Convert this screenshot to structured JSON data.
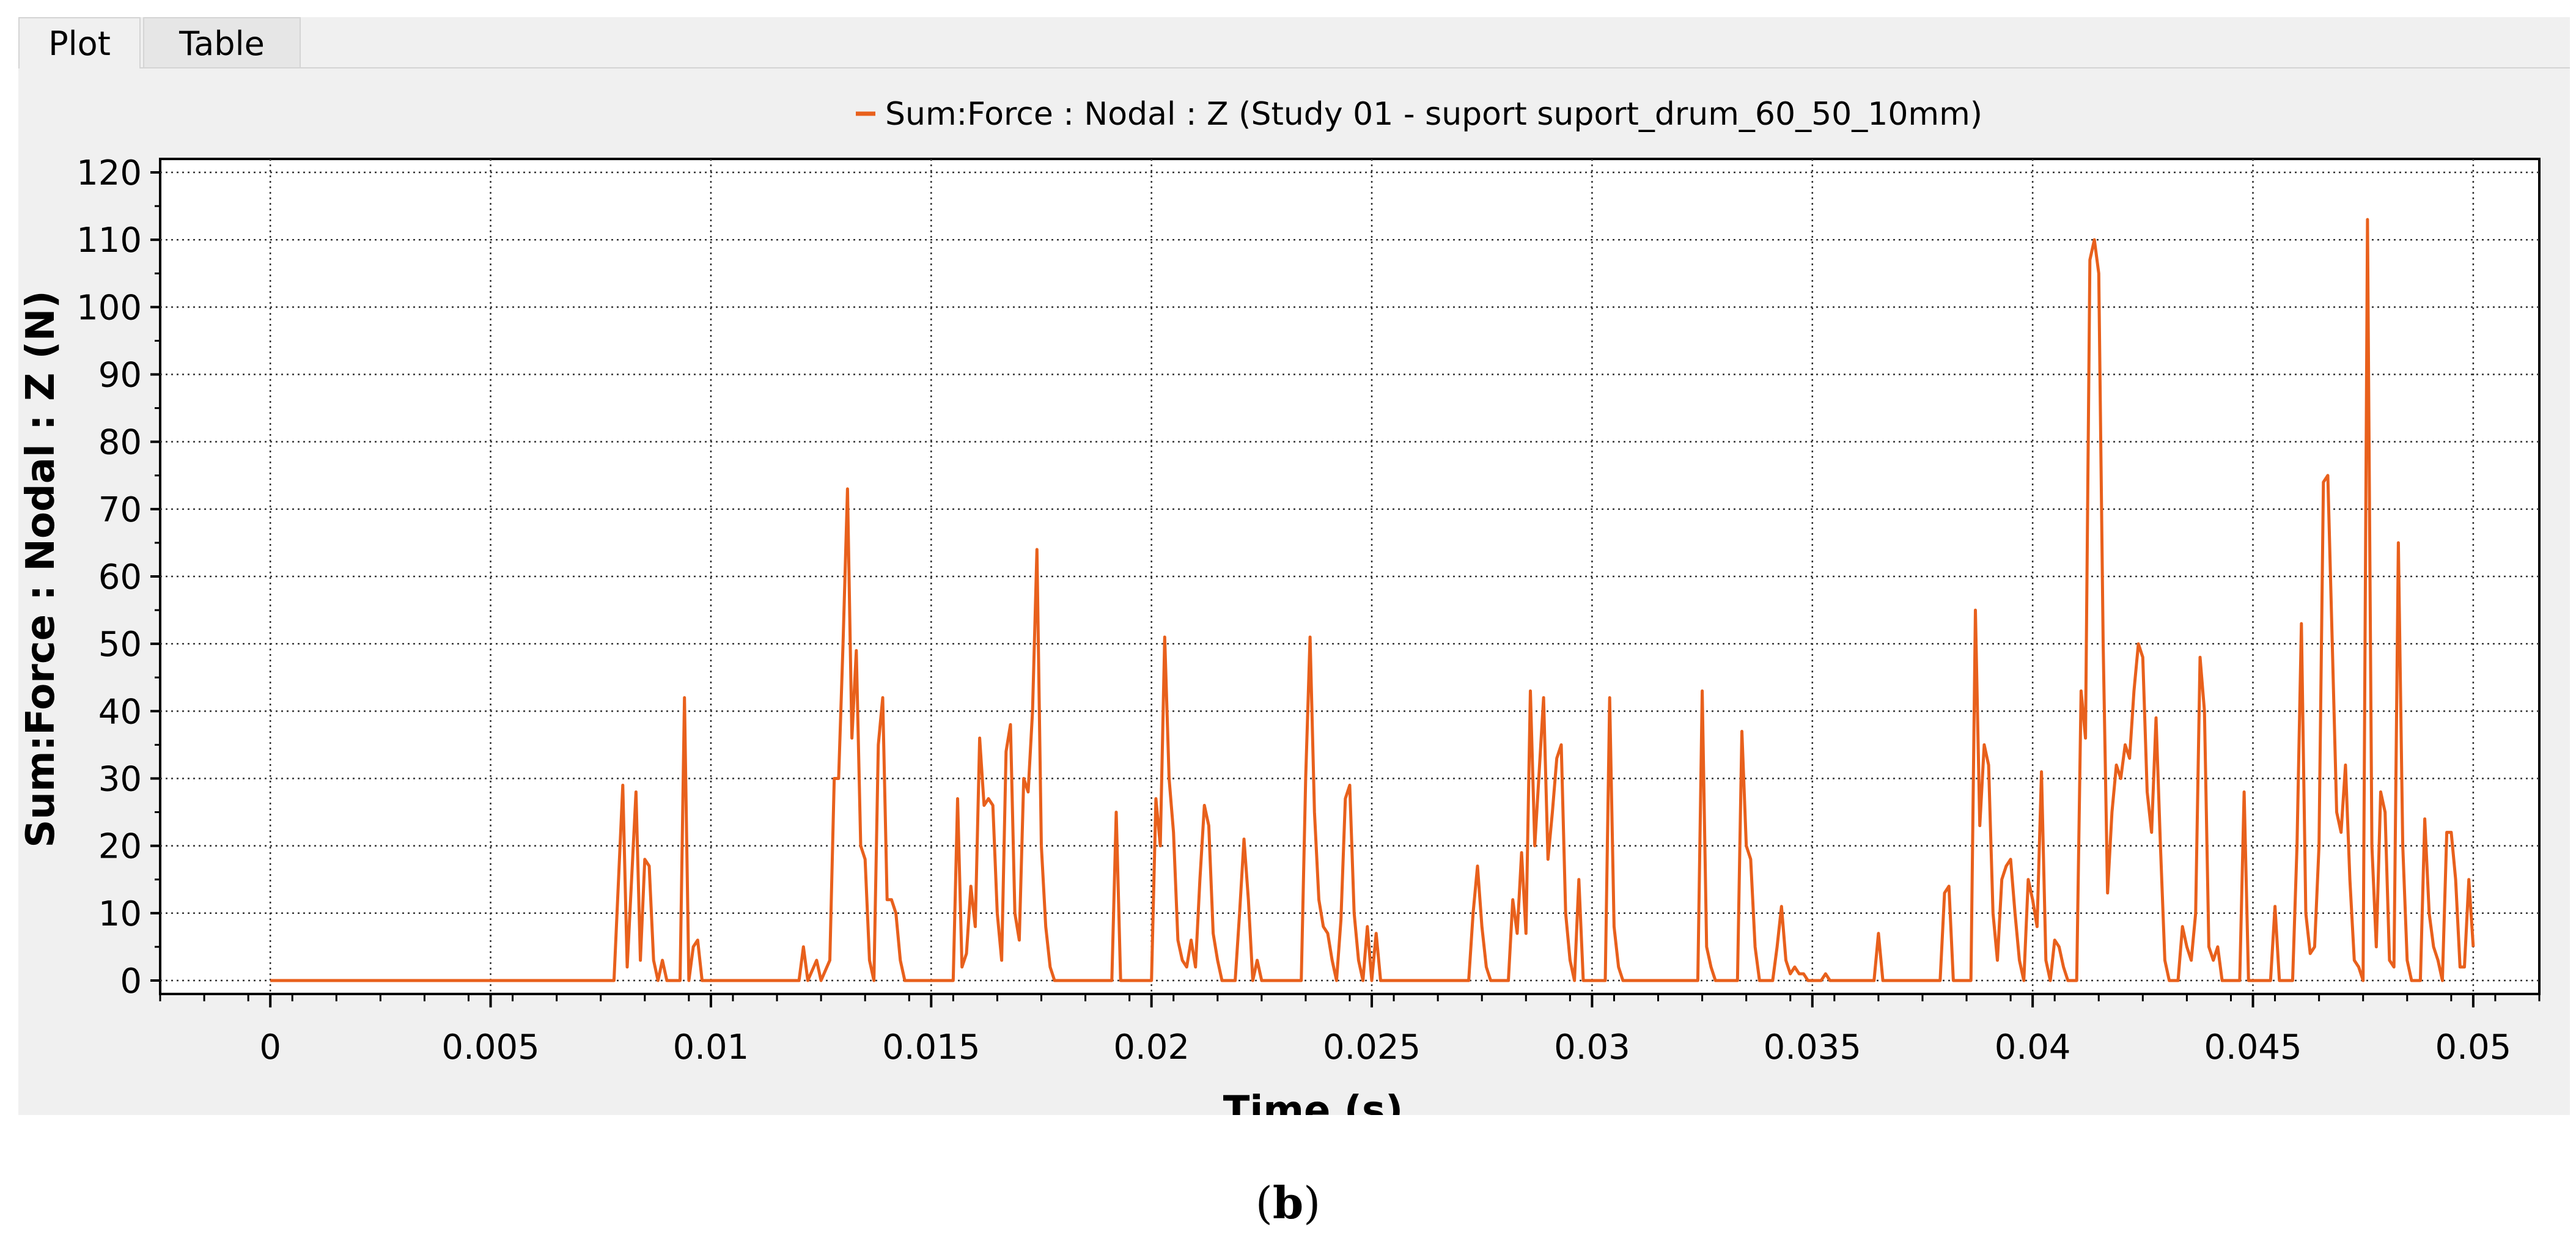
{
  "tabs": [
    {
      "label": "Plot",
      "active": true
    },
    {
      "label": "Table",
      "active": false
    }
  ],
  "caption": {
    "open": "(",
    "letter": "b",
    "close": ")"
  },
  "colors": {
    "series": "#e8601c",
    "grid": "#333333",
    "panel_bg": "#f0f0f0",
    "plot_bg": "#ffffff"
  },
  "chart_data": {
    "type": "line",
    "title": "",
    "xlabel": "Time (s)",
    "ylabel": "Sum:Force : Nodal : Z (N)",
    "xlim": [
      -0.0025,
      0.0515
    ],
    "ylim": [
      -2,
      122
    ],
    "xticks": [
      0,
      0.005,
      0.01,
      0.015,
      0.02,
      0.025,
      0.03,
      0.035,
      0.04,
      0.045,
      0.05
    ],
    "xtick_labels": [
      "0",
      "0.005",
      "0.01",
      "0.015",
      "0.02",
      "0.025",
      "0.03",
      "0.035",
      "0.04",
      "0.045",
      "0.05"
    ],
    "yticks": [
      0,
      10,
      20,
      30,
      40,
      50,
      60,
      70,
      80,
      90,
      100,
      110,
      120
    ],
    "ytick_labels": [
      "0",
      "10",
      "20",
      "30",
      "40",
      "50",
      "60",
      "70",
      "80",
      "90",
      "100",
      "110",
      "120"
    ],
    "grid": true,
    "grid_style": "dotted",
    "legend_position": "top-center",
    "series": [
      {
        "name": "Sum:Force : Nodal : Z (Study 01 - suport suport_drum_60_50_10mm)",
        "color": "#e8601c",
        "points": [
          [
            0,
            0
          ],
          [
            0.0078,
            0
          ],
          [
            0.008,
            29
          ],
          [
            0.0081,
            2
          ],
          [
            0.0083,
            28
          ],
          [
            0.0084,
            3
          ],
          [
            0.0085,
            18
          ],
          [
            0.0086,
            17
          ],
          [
            0.0087,
            3
          ],
          [
            0.0088,
            0
          ],
          [
            0.0089,
            3
          ],
          [
            0.009,
            0
          ],
          [
            0.0093,
            0
          ],
          [
            0.0094,
            42
          ],
          [
            0.0095,
            0
          ],
          [
            0.0096,
            5
          ],
          [
            0.0097,
            6
          ],
          [
            0.0098,
            0
          ],
          [
            0.012,
            0
          ],
          [
            0.0121,
            5
          ],
          [
            0.0122,
            0
          ],
          [
            0.0124,
            3
          ],
          [
            0.0125,
            0
          ],
          [
            0.0127,
            3
          ],
          [
            0.0128,
            30
          ],
          [
            0.0129,
            30
          ],
          [
            0.013,
            50
          ],
          [
            0.0131,
            73
          ],
          [
            0.0132,
            36
          ],
          [
            0.0133,
            49
          ],
          [
            0.0134,
            20
          ],
          [
            0.0135,
            18
          ],
          [
            0.0136,
            3
          ],
          [
            0.0137,
            0
          ],
          [
            0.0138,
            35
          ],
          [
            0.0139,
            42
          ],
          [
            0.014,
            12
          ],
          [
            0.0141,
            12
          ],
          [
            0.0142,
            10
          ],
          [
            0.0143,
            3
          ],
          [
            0.0144,
            0
          ],
          [
            0.0155,
            0
          ],
          [
            0.0156,
            27
          ],
          [
            0.0157,
            2
          ],
          [
            0.0158,
            4
          ],
          [
            0.0159,
            14
          ],
          [
            0.016,
            8
          ],
          [
            0.0161,
            36
          ],
          [
            0.0162,
            26
          ],
          [
            0.0163,
            27
          ],
          [
            0.0164,
            26
          ],
          [
            0.0165,
            10
          ],
          [
            0.0166,
            3
          ],
          [
            0.0167,
            34
          ],
          [
            0.0168,
            38
          ],
          [
            0.0169,
            10
          ],
          [
            0.017,
            6
          ],
          [
            0.0171,
            30
          ],
          [
            0.0172,
            28
          ],
          [
            0.0173,
            40
          ],
          [
            0.0174,
            64
          ],
          [
            0.0175,
            20
          ],
          [
            0.0176,
            8
          ],
          [
            0.0177,
            2
          ],
          [
            0.0178,
            0
          ],
          [
            0.0191,
            0
          ],
          [
            0.0192,
            25
          ],
          [
            0.0193,
            0
          ],
          [
            0.02,
            0
          ],
          [
            0.0201,
            27
          ],
          [
            0.0202,
            20
          ],
          [
            0.0203,
            51
          ],
          [
            0.0204,
            30
          ],
          [
            0.0205,
            22
          ],
          [
            0.0206,
            6
          ],
          [
            0.0207,
            3
          ],
          [
            0.0208,
            2
          ],
          [
            0.0209,
            6
          ],
          [
            0.021,
            2
          ],
          [
            0.0211,
            15
          ],
          [
            0.0212,
            26
          ],
          [
            0.0213,
            23
          ],
          [
            0.0214,
            7
          ],
          [
            0.0215,
            3
          ],
          [
            0.0216,
            0
          ],
          [
            0.0219,
            0
          ],
          [
            0.022,
            10
          ],
          [
            0.0221,
            21
          ],
          [
            0.0222,
            12
          ],
          [
            0.0223,
            0
          ],
          [
            0.0224,
            3
          ],
          [
            0.0225,
            0
          ],
          [
            0.0234,
            0
          ],
          [
            0.0235,
            30
          ],
          [
            0.0236,
            51
          ],
          [
            0.0237,
            25
          ],
          [
            0.0238,
            12
          ],
          [
            0.0239,
            8
          ],
          [
            0.024,
            7
          ],
          [
            0.0241,
            3
          ],
          [
            0.0242,
            0
          ],
          [
            0.0243,
            9
          ],
          [
            0.0244,
            27
          ],
          [
            0.0245,
            29
          ],
          [
            0.0246,
            10
          ],
          [
            0.0247,
            3
          ],
          [
            0.0248,
            0
          ],
          [
            0.0249,
            8
          ],
          [
            0.025,
            0
          ],
          [
            0.0251,
            7
          ],
          [
            0.0252,
            0
          ],
          [
            0.0272,
            0
          ],
          [
            0.0273,
            10
          ],
          [
            0.0274,
            17
          ],
          [
            0.0275,
            8
          ],
          [
            0.0276,
            2
          ],
          [
            0.0277,
            0
          ],
          [
            0.0281,
            0
          ],
          [
            0.0282,
            12
          ],
          [
            0.0283,
            7
          ],
          [
            0.0284,
            19
          ],
          [
            0.0285,
            7
          ],
          [
            0.0286,
            43
          ],
          [
            0.0287,
            20
          ],
          [
            0.0288,
            31
          ],
          [
            0.0289,
            42
          ],
          [
            0.029,
            18
          ],
          [
            0.0291,
            25
          ],
          [
            0.0292,
            33
          ],
          [
            0.0293,
            35
          ],
          [
            0.0294,
            10
          ],
          [
            0.0295,
            3
          ],
          [
            0.0296,
            0
          ],
          [
            0.0297,
            15
          ],
          [
            0.0298,
            0
          ],
          [
            0.0303,
            0
          ],
          [
            0.0304,
            42
          ],
          [
            0.0305,
            8
          ],
          [
            0.0306,
            2
          ],
          [
            0.0307,
            0
          ],
          [
            0.0324,
            0
          ],
          [
            0.0325,
            43
          ],
          [
            0.0326,
            5
          ],
          [
            0.0327,
            2
          ],
          [
            0.0328,
            0
          ],
          [
            0.0333,
            0
          ],
          [
            0.0334,
            37
          ],
          [
            0.0335,
            20
          ],
          [
            0.0336,
            18
          ],
          [
            0.0337,
            5
          ],
          [
            0.0338,
            0
          ],
          [
            0.0341,
            0
          ],
          [
            0.0342,
            5
          ],
          [
            0.0343,
            11
          ],
          [
            0.0344,
            3
          ],
          [
            0.0345,
            1
          ],
          [
            0.0346,
            2
          ],
          [
            0.0347,
            1
          ],
          [
            0.0348,
            1
          ],
          [
            0.0349,
            0
          ],
          [
            0.0352,
            0
          ],
          [
            0.0353,
            1
          ],
          [
            0.0354,
            0
          ],
          [
            0.0364,
            0
          ],
          [
            0.0365,
            7
          ],
          [
            0.0366,
            0
          ],
          [
            0.0379,
            0
          ],
          [
            0.038,
            13
          ],
          [
            0.0381,
            14
          ],
          [
            0.0382,
            0
          ],
          [
            0.0386,
            0
          ],
          [
            0.0387,
            55
          ],
          [
            0.0388,
            23
          ],
          [
            0.0389,
            35
          ],
          [
            0.039,
            32
          ],
          [
            0.0391,
            10
          ],
          [
            0.0392,
            3
          ],
          [
            0.0393,
            15
          ],
          [
            0.0394,
            17
          ],
          [
            0.0395,
            18
          ],
          [
            0.0396,
            10
          ],
          [
            0.0397,
            3
          ],
          [
            0.0398,
            0
          ],
          [
            0.0399,
            15
          ],
          [
            0.04,
            12
          ],
          [
            0.0401,
            8
          ],
          [
            0.0402,
            31
          ],
          [
            0.0403,
            3
          ],
          [
            0.0404,
            0
          ],
          [
            0.0405,
            6
          ],
          [
            0.0406,
            5
          ],
          [
            0.0407,
            2
          ],
          [
            0.0408,
            0
          ],
          [
            0.041,
            0
          ],
          [
            0.0411,
            43
          ],
          [
            0.0412,
            36
          ],
          [
            0.0413,
            107
          ],
          [
            0.0414,
            110
          ],
          [
            0.0415,
            105
          ],
          [
            0.0416,
            50
          ],
          [
            0.0417,
            13
          ],
          [
            0.0418,
            25
          ],
          [
            0.0419,
            32
          ],
          [
            0.042,
            30
          ],
          [
            0.0421,
            35
          ],
          [
            0.0422,
            33
          ],
          [
            0.0423,
            43
          ],
          [
            0.0424,
            50
          ],
          [
            0.0425,
            48
          ],
          [
            0.0426,
            28
          ],
          [
            0.0427,
            22
          ],
          [
            0.0428,
            39
          ],
          [
            0.0429,
            20
          ],
          [
            0.043,
            3
          ],
          [
            0.0431,
            0
          ],
          [
            0.0433,
            0
          ],
          [
            0.0434,
            8
          ],
          [
            0.0435,
            5
          ],
          [
            0.0436,
            3
          ],
          [
            0.0437,
            10
          ],
          [
            0.0438,
            48
          ],
          [
            0.0439,
            40
          ],
          [
            0.044,
            5
          ],
          [
            0.0441,
            3
          ],
          [
            0.0442,
            5
          ],
          [
            0.0443,
            0
          ],
          [
            0.0447,
            0
          ],
          [
            0.0448,
            28
          ],
          [
            0.0449,
            0
          ],
          [
            0.0454,
            0
          ],
          [
            0.0455,
            11
          ],
          [
            0.0456,
            0
          ],
          [
            0.0459,
            0
          ],
          [
            0.046,
            20
          ],
          [
            0.0461,
            53
          ],
          [
            0.0462,
            10
          ],
          [
            0.0463,
            4
          ],
          [
            0.0464,
            5
          ],
          [
            0.0465,
            20
          ],
          [
            0.0466,
            74
          ],
          [
            0.0467,
            75
          ],
          [
            0.0468,
            50
          ],
          [
            0.0469,
            25
          ],
          [
            0.047,
            22
          ],
          [
            0.0471,
            32
          ],
          [
            0.0472,
            15
          ],
          [
            0.0473,
            3
          ],
          [
            0.0474,
            2
          ],
          [
            0.0475,
            0
          ],
          [
            0.0476,
            113
          ],
          [
            0.0477,
            20
          ],
          [
            0.0478,
            5
          ],
          [
            0.0479,
            28
          ],
          [
            0.048,
            25
          ],
          [
            0.0481,
            3
          ],
          [
            0.0482,
            2
          ],
          [
            0.0483,
            65
          ],
          [
            0.0484,
            20
          ],
          [
            0.0485,
            3
          ],
          [
            0.0486,
            0
          ],
          [
            0.0488,
            0
          ],
          [
            0.0489,
            24
          ],
          [
            0.049,
            10
          ],
          [
            0.0491,
            5
          ],
          [
            0.0492,
            3
          ],
          [
            0.0493,
            0
          ],
          [
            0.0494,
            22
          ],
          [
            0.0495,
            22
          ],
          [
            0.0496,
            15
          ],
          [
            0.0497,
            2
          ],
          [
            0.0498,
            2
          ],
          [
            0.0499,
            15
          ],
          [
            0.05,
            5
          ]
        ]
      }
    ]
  }
}
